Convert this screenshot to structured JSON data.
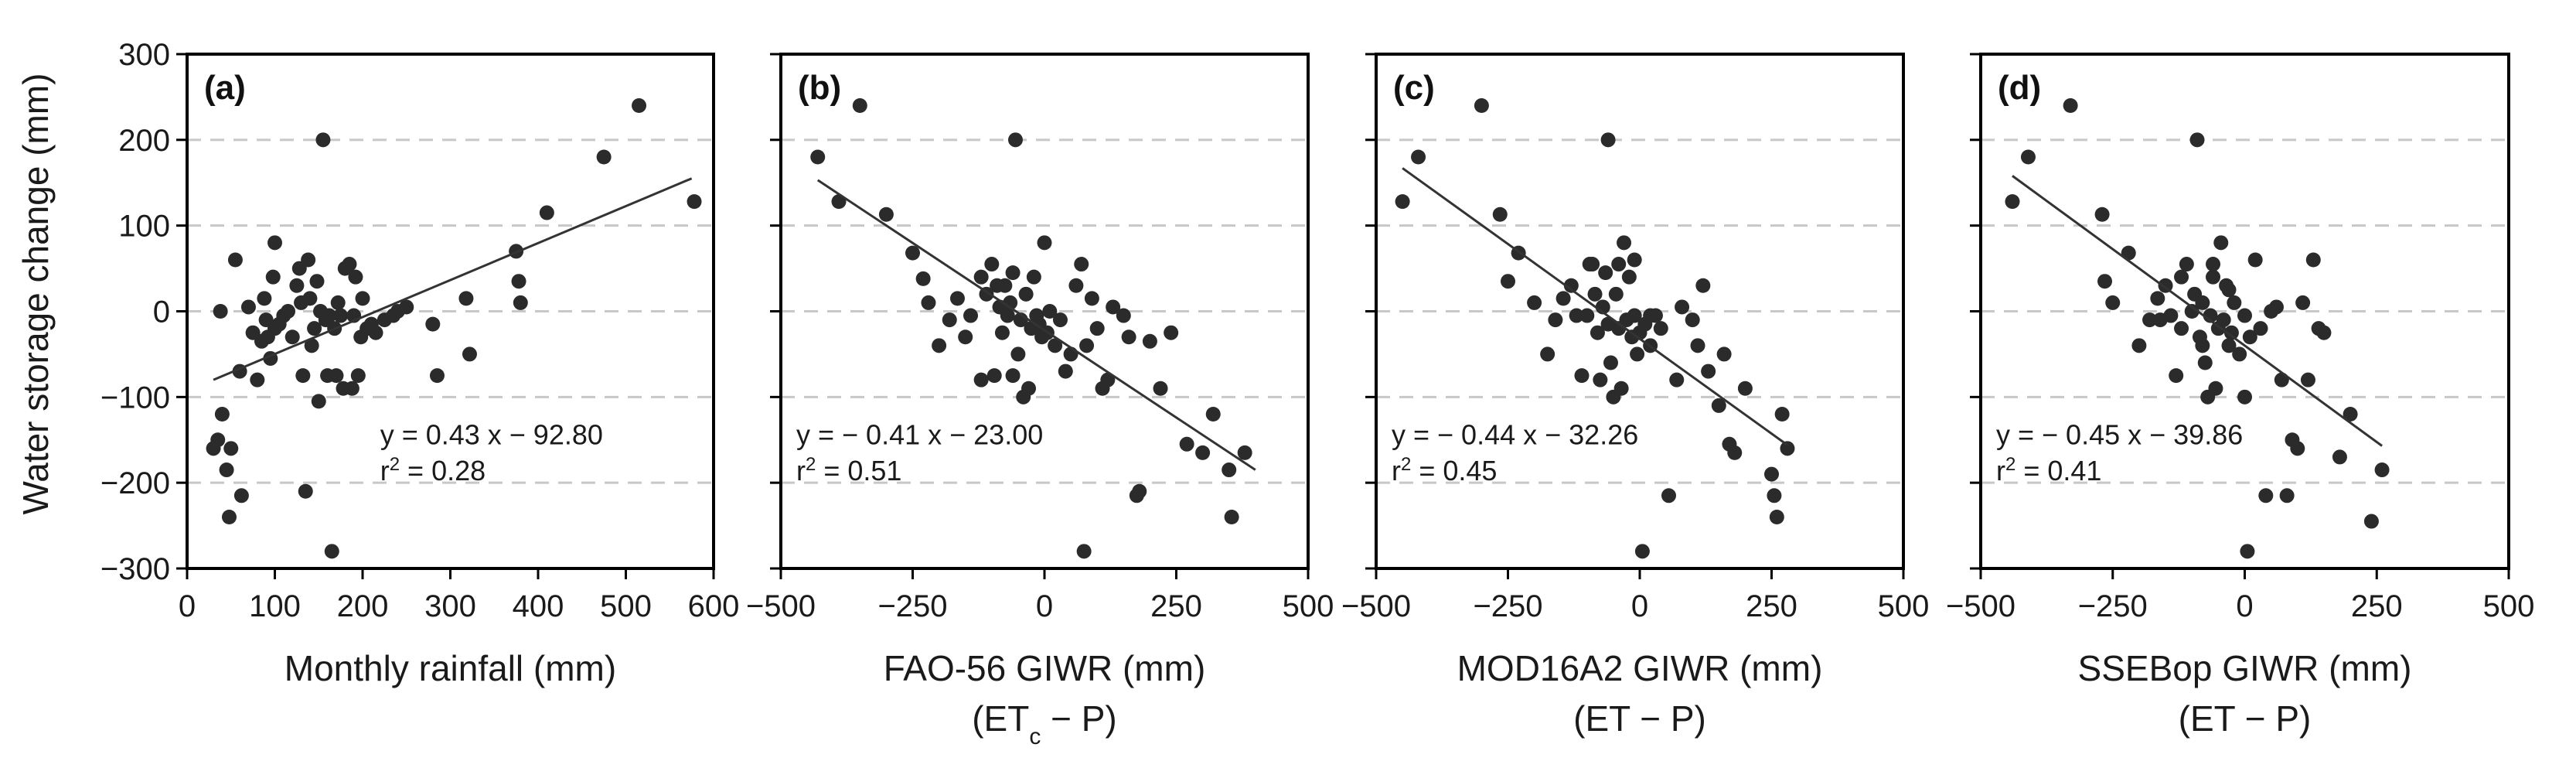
{
  "chart_data": [
    {
      "panel": "(a)",
      "type": "scatter",
      "xlabel": "Monthly rainfall (mm)",
      "xlabel_sub": "",
      "ylabel": "Water storage change (mm)",
      "xlim": [
        0,
        600
      ],
      "ylim": [
        -300,
        300
      ],
      "xticks": [
        0,
        100,
        200,
        300,
        400,
        500,
        600
      ],
      "yticks": [
        -300,
        -200,
        -100,
        0,
        100,
        200,
        300
      ],
      "grid": "dashed horizontal",
      "equation": "y = 0.43 x − 92.80",
      "r2_prefix": "r",
      "r2_sup": "2",
      "r2_suffix": " = 0.28",
      "fit": {
        "x0": 30,
        "y0": -80,
        "x1": 575,
        "y1": 155
      },
      "points": [
        [
          30,
          -160
        ],
        [
          35,
          -150
        ],
        [
          40,
          -120
        ],
        [
          45,
          -185
        ],
        [
          48,
          -240
        ],
        [
          50,
          -160
        ],
        [
          55,
          60
        ],
        [
          60,
          -70
        ],
        [
          62,
          -215
        ],
        [
          38,
          0
        ],
        [
          70,
          5
        ],
        [
          75,
          -25
        ],
        [
          80,
          -80
        ],
        [
          85,
          -35
        ],
        [
          88,
          15
        ],
        [
          90,
          -10
        ],
        [
          92,
          -30
        ],
        [
          95,
          -55
        ],
        [
          98,
          40
        ],
        [
          100,
          -20
        ],
        [
          100,
          80
        ],
        [
          105,
          -15
        ],
        [
          110,
          -5
        ],
        [
          115,
          0
        ],
        [
          120,
          -30
        ],
        [
          125,
          30
        ],
        [
          128,
          50
        ],
        [
          130,
          10
        ],
        [
          132,
          -75
        ],
        [
          135,
          -210
        ],
        [
          138,
          60
        ],
        [
          140,
          15
        ],
        [
          142,
          -40
        ],
        [
          145,
          -20
        ],
        [
          148,
          35
        ],
        [
          150,
          -105
        ],
        [
          152,
          0
        ],
        [
          155,
          200
        ],
        [
          158,
          -10
        ],
        [
          160,
          -75
        ],
        [
          162,
          -5
        ],
        [
          165,
          -280
        ],
        [
          168,
          -20
        ],
        [
          170,
          -75
        ],
        [
          172,
          10
        ],
        [
          175,
          -5
        ],
        [
          178,
          -90
        ],
        [
          180,
          50
        ],
        [
          185,
          55
        ],
        [
          188,
          -90
        ],
        [
          190,
          -5
        ],
        [
          192,
          40
        ],
        [
          195,
          -75
        ],
        [
          198,
          -30
        ],
        [
          200,
          15
        ],
        [
          205,
          -20
        ],
        [
          210,
          -15
        ],
        [
          215,
          -25
        ],
        [
          225,
          -10
        ],
        [
          235,
          -5
        ],
        [
          240,
          0
        ],
        [
          250,
          5
        ],
        [
          280,
          -15
        ],
        [
          285,
          -75
        ],
        [
          318,
          15
        ],
        [
          322,
          -50
        ],
        [
          375,
          70
        ],
        [
          378,
          35
        ],
        [
          380,
          10
        ],
        [
          410,
          115
        ],
        [
          475,
          180
        ],
        [
          515,
          240
        ],
        [
          578,
          128
        ]
      ]
    },
    {
      "panel": "(b)",
      "type": "scatter",
      "xlabel": "FAO-56 GIWR (mm)",
      "xlabel_sub_pre": "(ET",
      "xlabel_sub_sub": "c",
      "xlabel_sub_post": " − P)",
      "xlim": [
        -500,
        500
      ],
      "ylim": [
        -300,
        300
      ],
      "xticks": [
        -500,
        -250,
        0,
        250,
        500
      ],
      "yticks": [
        -300,
        -200,
        -100,
        0,
        100,
        200,
        300
      ],
      "grid": "dashed horizontal",
      "equation": "y = − 0.41 x − 23.00",
      "r2_prefix": "r",
      "r2_sup": "2",
      "r2_suffix": " = 0.51",
      "fit": {
        "x0": -430,
        "y0": 153,
        "x1": 400,
        "y1": -185
      },
      "points": [
        [
          -430,
          180
        ],
        [
          -390,
          128
        ],
        [
          -350,
          240
        ],
        [
          -300,
          113
        ],
        [
          -250,
          68
        ],
        [
          -230,
          38
        ],
        [
          -220,
          10
        ],
        [
          -200,
          -40
        ],
        [
          -180,
          -10
        ],
        [
          -165,
          15
        ],
        [
          -150,
          -30
        ],
        [
          -140,
          -5
        ],
        [
          -120,
          40
        ],
        [
          -110,
          20
        ],
        [
          -100,
          55
        ],
        [
          -95,
          -75
        ],
        [
          -90,
          30
        ],
        [
          -85,
          5
        ],
        [
          -80,
          -25
        ],
        [
          -70,
          -5
        ],
        [
          -65,
          10
        ],
        [
          -60,
          45
        ],
        [
          -55,
          200
        ],
        [
          -50,
          -50
        ],
        [
          -45,
          -10
        ],
        [
          -40,
          -100
        ],
        [
          -35,
          20
        ],
        [
          -30,
          -90
        ],
        [
          -25,
          -20
        ],
        [
          -20,
          40
        ],
        [
          -15,
          -5
        ],
        [
          -10,
          -15
        ],
        [
          -5,
          -30
        ],
        [
          0,
          80
        ],
        [
          5,
          -25
        ],
        [
          10,
          0
        ],
        [
          20,
          -40
        ],
        [
          30,
          -10
        ],
        [
          40,
          -70
        ],
        [
          50,
          -50
        ],
        [
          60,
          30
        ],
        [
          70,
          55
        ],
        [
          75,
          -280
        ],
        [
          80,
          -40
        ],
        [
          90,
          15
        ],
        [
          100,
          -20
        ],
        [
          110,
          -90
        ],
        [
          120,
          -80
        ],
        [
          130,
          5
        ],
        [
          150,
          -5
        ],
        [
          160,
          -30
        ],
        [
          175,
          -215
        ],
        [
          180,
          -210
        ],
        [
          200,
          -35
        ],
        [
          220,
          -90
        ],
        [
          240,
          -25
        ],
        [
          270,
          -155
        ],
        [
          300,
          -165
        ],
        [
          320,
          -120
        ],
        [
          350,
          -185
        ],
        [
          355,
          -240
        ],
        [
          380,
          -165
        ],
        [
          -60,
          -75
        ],
        [
          -120,
          -80
        ],
        [
          -75,
          30
        ]
      ]
    },
    {
      "panel": "(c)",
      "type": "scatter",
      "xlabel": "MOD16A2 GIWR (mm)",
      "xlabel_sub_pre": "(ET − P)",
      "xlabel_sub_sub": "",
      "xlabel_sub_post": "",
      "xlim": [
        -500,
        500
      ],
      "ylim": [
        -300,
        300
      ],
      "xticks": [
        -500,
        -250,
        0,
        250,
        500
      ],
      "yticks": [
        -300,
        -200,
        -100,
        0,
        100,
        200,
        300
      ],
      "grid": "dashed horizontal",
      "equation": "y = − 0.44 x − 32.26",
      "r2_prefix": "r",
      "r2_sup": "2",
      "r2_suffix": " = 0.45",
      "fit": {
        "x0": -450,
        "y0": 167,
        "x1": 280,
        "y1": -156
      },
      "points": [
        [
          -450,
          128
        ],
        [
          -420,
          180
        ],
        [
          -300,
          240
        ],
        [
          -265,
          113
        ],
        [
          -250,
          35
        ],
        [
          -230,
          68
        ],
        [
          -200,
          10
        ],
        [
          -175,
          -50
        ],
        [
          -160,
          -10
        ],
        [
          -145,
          15
        ],
        [
          -130,
          30
        ],
        [
          -120,
          -5
        ],
        [
          -110,
          -75
        ],
        [
          -100,
          -5
        ],
        [
          -95,
          55
        ],
        [
          -85,
          20
        ],
        [
          -80,
          -25
        ],
        [
          -75,
          -80
        ],
        [
          -70,
          5
        ],
        [
          -65,
          45
        ],
        [
          -60,
          200
        ],
        [
          -55,
          -60
        ],
        [
          -50,
          -100
        ],
        [
          -45,
          20
        ],
        [
          -40,
          -20
        ],
        [
          -35,
          -90
        ],
        [
          -30,
          80
        ],
        [
          -25,
          -10
        ],
        [
          -20,
          40
        ],
        [
          -15,
          -30
        ],
        [
          -10,
          -5
        ],
        [
          -5,
          -50
        ],
        [
          0,
          -25
        ],
        [
          5,
          -280
        ],
        [
          10,
          -15
        ],
        [
          20,
          -40
        ],
        [
          30,
          -5
        ],
        [
          40,
          -20
        ],
        [
          55,
          -215
        ],
        [
          70,
          -80
        ],
        [
          80,
          5
        ],
        [
          100,
          -10
        ],
        [
          110,
          -40
        ],
        [
          120,
          30
        ],
        [
          130,
          -70
        ],
        [
          150,
          -110
        ],
        [
          160,
          -50
        ],
        [
          170,
          -155
        ],
        [
          180,
          -165
        ],
        [
          200,
          -90
        ],
        [
          250,
          -190
        ],
        [
          255,
          -215
        ],
        [
          260,
          -240
        ],
        [
          270,
          -120
        ],
        [
          280,
          -160
        ],
        [
          -90,
          55
        ],
        [
          -60,
          -15
        ],
        [
          -40,
          55
        ],
        [
          -10,
          60
        ],
        [
          20,
          -5
        ]
      ]
    },
    {
      "panel": "(d)",
      "type": "scatter",
      "xlabel": "SSEBop GIWR (mm)",
      "xlabel_sub_pre": "(ET − P)",
      "xlabel_sub_sub": "",
      "xlabel_sub_post": "",
      "xlim": [
        -500,
        500
      ],
      "ylim": [
        -300,
        300
      ],
      "xticks": [
        -500,
        -250,
        0,
        250,
        500
      ],
      "yticks": [
        -300,
        -200,
        -100,
        0,
        100,
        200,
        300
      ],
      "grid": "dashed horizontal",
      "equation": "y = − 0.45 x − 39.86",
      "r2_prefix": "r",
      "r2_sup": "2",
      "r2_suffix": " = 0.41",
      "fit": {
        "x0": -440,
        "y0": 158,
        "x1": 260,
        "y1": -157
      },
      "points": [
        [
          -440,
          128
        ],
        [
          -410,
          180
        ],
        [
          -330,
          240
        ],
        [
          -270,
          113
        ],
        [
          -265,
          35
        ],
        [
          -250,
          10
        ],
        [
          -220,
          68
        ],
        [
          -200,
          -40
        ],
        [
          -180,
          -10
        ],
        [
          -165,
          15
        ],
        [
          -150,
          30
        ],
        [
          -140,
          -5
        ],
        [
          -130,
          -75
        ],
        [
          -120,
          -20
        ],
        [
          -110,
          55
        ],
        [
          -100,
          0
        ],
        [
          -95,
          20
        ],
        [
          -90,
          200
        ],
        [
          -85,
          -30
        ],
        [
          -80,
          10
        ],
        [
          -75,
          -60
        ],
        [
          -70,
          -100
        ],
        [
          -65,
          -5
        ],
        [
          -60,
          40
        ],
        [
          -55,
          -90
        ],
        [
          -50,
          -20
        ],
        [
          -45,
          80
        ],
        [
          -40,
          -10
        ],
        [
          -35,
          30
        ],
        [
          -30,
          -40
        ],
        [
          -25,
          -25
        ],
        [
          -20,
          10
        ],
        [
          -10,
          -50
        ],
        [
          0,
          -5
        ],
        [
          10,
          -30
        ],
        [
          20,
          60
        ],
        [
          30,
          -20
        ],
        [
          40,
          -215
        ],
        [
          50,
          0
        ],
        [
          70,
          -80
        ],
        [
          80,
          -215
        ],
        [
          90,
          -150
        ],
        [
          100,
          -160
        ],
        [
          110,
          10
        ],
        [
          120,
          -80
        ],
        [
          130,
          60
        ],
        [
          140,
          -20
        ],
        [
          150,
          -25
        ],
        [
          200,
          -120
        ],
        [
          240,
          -245
        ],
        [
          260,
          -185
        ],
        [
          -120,
          40
        ],
        [
          -80,
          -40
        ],
        [
          -30,
          25
        ],
        [
          0,
          -100
        ],
        [
          60,
          5
        ],
        [
          180,
          -170
        ],
        [
          -160,
          -10
        ],
        [
          -60,
          55
        ],
        [
          5,
          -280
        ]
      ]
    }
  ]
}
